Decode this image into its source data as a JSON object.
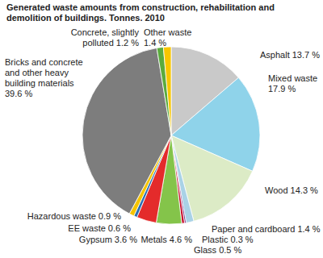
{
  "chart_data": {
    "type": "pie",
    "title": "Generated waste amounts from construction, rehabilitation and demolition of buildings. Tonnes. 2010",
    "categories": [
      "Asphalt",
      "Mixed waste",
      "Wood",
      "Paper and cardboard",
      "Plastic",
      "Glass",
      "Metals",
      "Gypsum",
      "EE waste",
      "Hazardous waste",
      "Bricks and concrete and other heavy building materials",
      "Concrete, slightly polluted",
      "Other waste"
    ],
    "values": [
      13.7,
      17.9,
      14.3,
      1.4,
      0.3,
      0.5,
      4.6,
      3.6,
      0.6,
      0.9,
      39.6,
      1.2,
      1.4
    ],
    "value_labels": [
      "13.7 %",
      "17.9 %",
      "14.3 %",
      "1.4 %",
      "0.3 %",
      "0.5 %",
      "4.6 %",
      "3.6 %",
      "0.6 %",
      "0.9 %",
      "39.6 %",
      "1.2 %",
      "1.4 %"
    ],
    "colors": [
      "#c9c9c9",
      "#8fd3ea",
      "#dcebc6",
      "#a9d2e6",
      "#7a3b8c",
      "#c8102e",
      "#84c44a",
      "#e42b2b",
      "#2c6fb3",
      "#f5c400",
      "#7d7d7d",
      "#5aab3d",
      "#f7c600"
    ],
    "data_labels": true
  }
}
